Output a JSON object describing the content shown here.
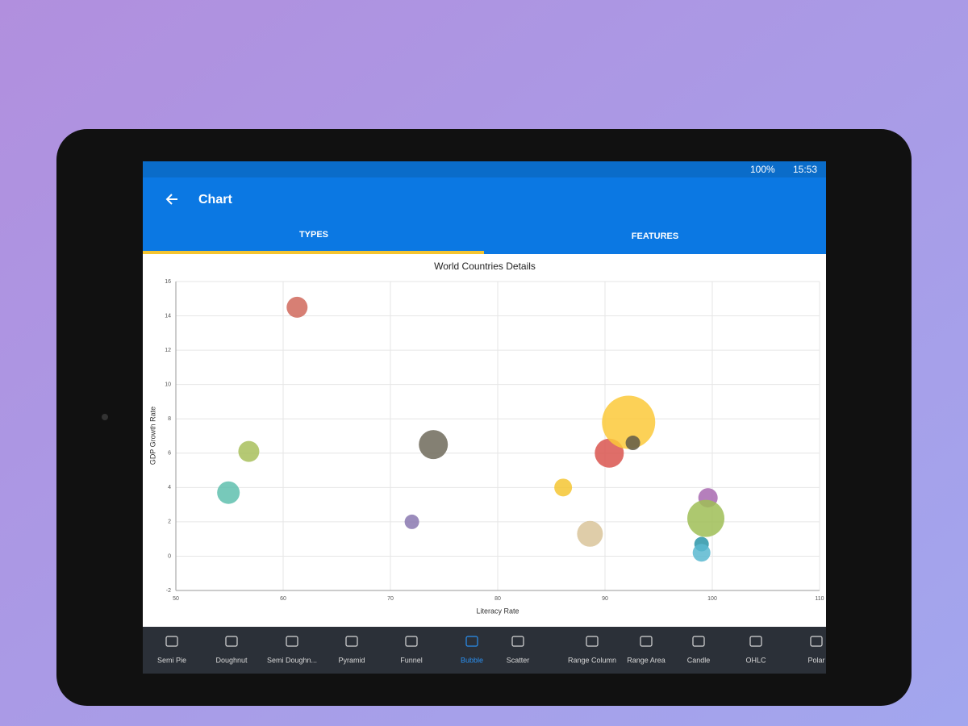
{
  "status_bar": {
    "battery": "100%",
    "time": "15:53"
  },
  "app_bar": {
    "title": "Chart"
  },
  "tabs": [
    "TYPES",
    "FEATURES"
  ],
  "chart_data": {
    "type": "bubble",
    "title": "World Countries Details",
    "x_label": "Literacy Rate",
    "y_label": "GDP Growth Rate",
    "x": [
      61.3,
      56.8,
      54.9,
      72.0,
      74.0,
      86.1,
      88.6,
      90.4,
      92.2,
      92.6,
      99.6,
      99.4,
      99.0,
      99.0
    ],
    "y": [
      14.5,
      6.1,
      3.7,
      2.0,
      6.5,
      4.0,
      1.3,
      6.0,
      7.8,
      6.6,
      3.4,
      2.2,
      0.7,
      0.2
    ],
    "sizes": [
      13,
      13,
      14,
      9,
      18,
      11,
      16,
      18,
      33,
      9,
      12,
      23,
      9,
      11
    ],
    "colors": [
      "#d0685c",
      "#a8bf5c",
      "#5fbfae",
      "#8a78b0",
      "#6e6a5a",
      "#f5c532",
      "#d9c49a",
      "#d9554f",
      "#fcc93a",
      "#5f5a48",
      "#a868b0",
      "#9fbe56",
      "#2a95a8",
      "#5ab8d0"
    ],
    "xlim": [
      50,
      110
    ],
    "xticks": [
      50,
      60,
      70,
      80,
      90,
      100,
      110
    ],
    "ylim": [
      -2,
      16
    ],
    "yticks": [
      -2,
      0,
      2,
      4,
      6,
      8,
      10,
      12,
      14,
      16
    ],
    "grid": true
  },
  "bottom_nav": {
    "items": [
      "Semi Pie",
      "Doughnut",
      "Semi Doughn...",
      "Pyramid",
      "Funnel",
      "Bubble",
      "Scatter",
      "Range Column",
      "Range Area",
      "Candle",
      "OHLC",
      "Polar"
    ],
    "selected": 5
  }
}
